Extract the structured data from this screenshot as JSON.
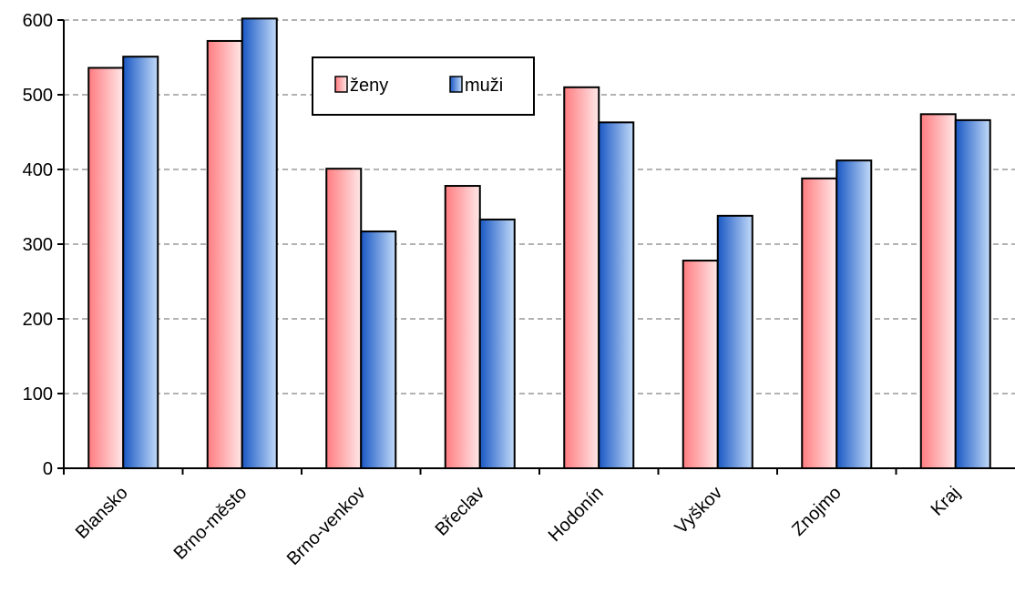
{
  "chart_data": {
    "type": "bar",
    "categories": [
      "Blansko",
      "Brno-město",
      "Brno-venkov",
      "Břeclav",
      "Hodonín",
      "Vyškov",
      "Znojmo",
      "Kraj"
    ],
    "series": [
      {
        "name": "ženy",
        "values": [
          536,
          572,
          401,
          378,
          510,
          278,
          388,
          474
        ],
        "color": "#ff7f82"
      },
      {
        "name": "muži",
        "values": [
          551,
          602,
          317,
          333,
          463,
          338,
          412,
          466
        ],
        "color": "#2f6fd6"
      }
    ],
    "yticks": [
      "0",
      "100",
      "200",
      "300",
      "400",
      "500",
      "600"
    ],
    "ylim": [
      0,
      600
    ],
    "grid": "dashed-horizontal",
    "legend_position": "top-center",
    "colors": {
      "zeny_dark": "#ff7f82",
      "zeny_light": "#ffe6e6",
      "muzi_dark": "#1f5fc8",
      "muzi_light": "#bcd6f7"
    }
  }
}
